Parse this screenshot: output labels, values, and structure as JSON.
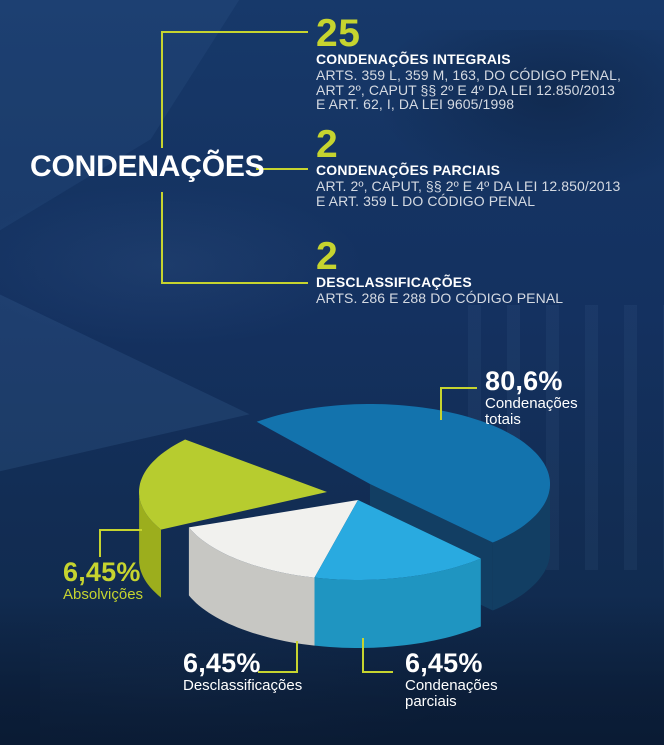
{
  "title": "CONDENAÇÕES",
  "accent_color": "#c6d42f",
  "text_color": "#ffffff",
  "body_text_color": "#d5dae2",
  "background_color": "#14345c",
  "stats": [
    {
      "number": "25",
      "label": "CONDENAÇÕES INTEGRAIS",
      "details": [
        "ARTS. 359 L, 359 M, 163, DO CÓDIGO PENAL,",
        "ART 2º, CAPUT §§ 2º E 4º DA LEI 12.850/2013",
        "E ART. 62, I, DA LEI 9605/1998"
      ]
    },
    {
      "number": "2",
      "label": "CONDENAÇÕES PARCIAIS",
      "details": [
        "ART. 2º, CAPUT, §§ 2º E 4º DA LEI 12.850/2013",
        "E ART. 359 L DO CÓDIGO PENAL"
      ]
    },
    {
      "number": "2",
      "label": "DESCLASSIFICAÇÕES",
      "details": [
        "ARTS. 286 E 288 DO CÓDIGO PENAL"
      ]
    }
  ],
  "chart_data": {
    "type": "pie",
    "style": "3d-exploded",
    "legend_position": "callout-labels",
    "slices": [
      {
        "id": "condenacoes-totais",
        "label": "Condenações totais",
        "value_pct": 80.6,
        "value_text": "80,6%",
        "color": "#1373ad",
        "side_color": "#123e63"
      },
      {
        "id": "condenacoes-parciais",
        "label": "Condenações parciais",
        "value_pct": 6.45,
        "value_text": "6,45%",
        "color": "#29aae0",
        "side_color": "#1f95c1"
      },
      {
        "id": "desclassificacoes",
        "label": "Desclassificações",
        "value_pct": 6.45,
        "value_text": "6,45%",
        "color": "#f1f1ee",
        "side_color": "#c7c7c3"
      },
      {
        "id": "absolvicoes",
        "label": "Absolvições",
        "value_pct": 6.45,
        "value_text": "6,45%",
        "color": "#b7cc2f",
        "side_color": "#9cae1d"
      }
    ]
  }
}
